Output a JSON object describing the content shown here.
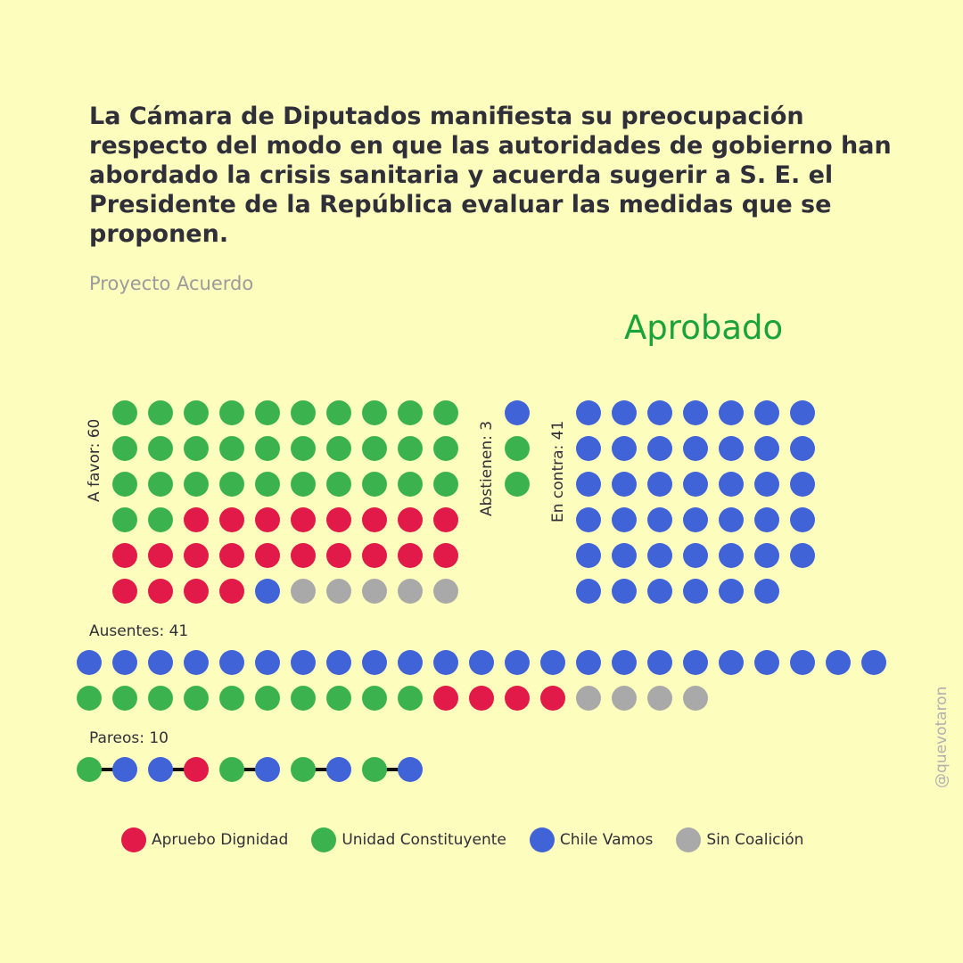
{
  "title": "La Cámara de Diputados manifiesta su preocupación respecto del modo en que las autoridades de gobierno han abordado la crisis sanitaria y acuerda sugerir a S. E. el Presidente de la República evaluar las medidas que se proponen.",
  "subtitle": "Proyecto Acuerdo",
  "result": "Aprobado",
  "watermark": "@quevotaron",
  "colors": {
    "background": "#fdfdbd",
    "apruebo_dignidad": "#e21a4a",
    "unidad_constituyente": "#3bb24d",
    "chile_vamos": "#4163d8",
    "sin_coalicion": "#a9a9a9",
    "result": "#1aa33a"
  },
  "chart_data": {
    "type": "dot-matrix",
    "groups": [
      {
        "key": "favor",
        "label": "A favor: 60",
        "total": 60,
        "seats": {
          "unidad_constituyente": 32,
          "apruebo_dignidad": 22,
          "chile_vamos": 1,
          "sin_coalicion": 5
        }
      },
      {
        "key": "abstienen",
        "label": "Abstienen: 3",
        "total": 3,
        "seats": {
          "chile_vamos": 1,
          "unidad_constituyente": 2
        }
      },
      {
        "key": "contra",
        "label": "En contra: 41",
        "total": 41,
        "seats": {
          "chile_vamos": 41
        }
      },
      {
        "key": "ausentes",
        "label": "Ausentes: 41",
        "total": 41,
        "seats": {
          "chile_vamos": 23,
          "unidad_constituyente": 10,
          "apruebo_dignidad": 4,
          "sin_coalicion": 4
        }
      },
      {
        "key": "pareos",
        "label": "Pareos: 10",
        "total": 10,
        "pairs": [
          [
            "unidad_constituyente",
            "chile_vamos"
          ],
          [
            "chile_vamos",
            "apruebo_dignidad"
          ],
          [
            "unidad_constituyente",
            "chile_vamos"
          ],
          [
            "unidad_constituyente",
            "chile_vamos"
          ],
          [
            "unidad_constituyente",
            "chile_vamos"
          ]
        ]
      }
    ],
    "legend": [
      {
        "key": "apruebo_dignidad",
        "label": "Apruebo Dignidad"
      },
      {
        "key": "unidad_constituyente",
        "label": "Unidad Constituyente"
      },
      {
        "key": "chile_vamos",
        "label": "Chile Vamos"
      },
      {
        "key": "sin_coalicion",
        "label": "Sin Coalición"
      }
    ]
  }
}
